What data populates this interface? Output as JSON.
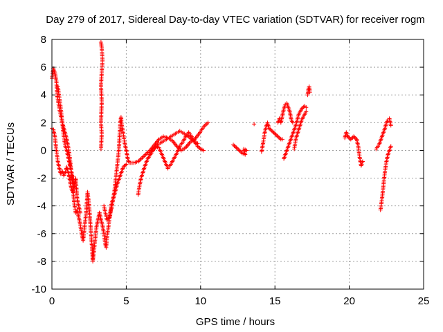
{
  "chart_data": {
    "type": "scatter",
    "title": "Day 279 of 2017, Sidereal Day-to-day VTEC variation (SDTVAR) for receiver rogm",
    "xlabel": "GPS time / hours",
    "ylabel": "SDTVAR / TECUs",
    "xlim": [
      0,
      25
    ],
    "ylim": [
      -10,
      8
    ],
    "x_ticks": [
      0,
      5,
      10,
      15,
      20,
      25
    ],
    "y_ticks": [
      -10,
      -8,
      -6,
      -4,
      -2,
      0,
      2,
      4,
      6,
      8
    ],
    "x_tick_labels": [
      "0",
      "5",
      "10",
      "15",
      "20",
      "25"
    ],
    "y_tick_labels": [
      "-10",
      "-8",
      "-6",
      "-4",
      "-2",
      "0",
      "2",
      "4",
      "6",
      "8"
    ],
    "grid": true,
    "legend": "none",
    "marker": "+",
    "color": "#ff0000",
    "series": [
      {
        "segments": [
          [
            [
              0.0,
              5.2
            ],
            [
              0.1,
              5.9
            ],
            [
              0.2,
              5.6
            ],
            [
              0.3,
              5.0
            ],
            [
              0.35,
              4.0
            ],
            [
              0.5,
              3.0
            ],
            [
              0.7,
              2.0
            ],
            [
              0.9,
              1.2
            ],
            [
              1.0,
              0.8
            ],
            [
              1.1,
              0.2
            ],
            [
              1.2,
              -0.5
            ],
            [
              1.3,
              -1.5
            ],
            [
              1.4,
              -2.5
            ],
            [
              1.5,
              -3.8
            ],
            [
              1.6,
              -4.5
            ],
            [
              1.7,
              -4.3
            ],
            [
              1.8,
              -4.8
            ],
            [
              1.9,
              -5.3
            ],
            [
              2.0,
              -6.0
            ],
            [
              2.1,
              -6.5
            ],
            [
              2.2,
              -5.5
            ],
            [
              2.3,
              -4.5
            ],
            [
              2.4,
              -3.0
            ],
            [
              2.5,
              -4.0
            ],
            [
              2.6,
              -5.5
            ],
            [
              2.7,
              -7.0
            ],
            [
              2.75,
              -8.0
            ],
            [
              2.8,
              -7.5
            ],
            [
              2.9,
              -6.5
            ],
            [
              3.0,
              -5.5
            ],
            [
              3.1,
              -5.0
            ],
            [
              3.2,
              -4.5
            ]
          ],
          [
            [
              0.0,
              1.6
            ],
            [
              0.1,
              1.5
            ],
            [
              0.2,
              1.0
            ],
            [
              0.3,
              0.0
            ],
            [
              0.4,
              -0.8
            ],
            [
              0.5,
              -1.3
            ],
            [
              0.6,
              -1.7
            ],
            [
              0.7,
              -1.5
            ],
            [
              0.8,
              -1.8
            ],
            [
              0.9,
              -1.6
            ],
            [
              1.0,
              -1.2
            ],
            [
              1.1,
              -1.6
            ],
            [
              1.2,
              -2.1
            ],
            [
              1.3,
              -2.7
            ],
            [
              1.4,
              -3.0
            ],
            [
              1.5,
              -2.5
            ],
            [
              1.6,
              -2.0
            ],
            [
              1.7,
              -3.5
            ],
            [
              1.8,
              -4.0
            ],
            [
              1.9,
              -4.5
            ]
          ],
          [
            [
              0.4,
              4.6
            ],
            [
              0.5,
              3.8
            ],
            [
              0.6,
              3.0
            ],
            [
              0.7,
              2.0
            ],
            [
              0.8,
              1.0
            ],
            [
              0.9,
              0.3
            ],
            [
              1.0,
              0.0
            ],
            [
              1.1,
              -0.5
            ],
            [
              1.2,
              -1.0
            ],
            [
              1.3,
              -1.5
            ],
            [
              1.4,
              -2.0
            ],
            [
              1.5,
              -2.6
            ]
          ],
          [
            [
              3.3,
              7.8
            ],
            [
              3.35,
              7.4
            ],
            [
              3.4,
              6.5
            ],
            [
              3.3,
              4.7
            ],
            [
              3.35,
              3.5
            ],
            [
              3.3,
              2.0
            ],
            [
              3.35,
              1.2
            ],
            [
              3.3,
              0.1
            ]
          ],
          [
            [
              3.2,
              -4.5
            ],
            [
              3.3,
              -5.0
            ],
            [
              3.4,
              -5.4
            ],
            [
              3.5,
              -6.0
            ],
            [
              3.6,
              -6.8
            ],
            [
              3.65,
              -7.0
            ],
            [
              3.7,
              -6.3
            ],
            [
              3.8,
              -5.5
            ],
            [
              3.9,
              -4.6
            ],
            [
              4.0,
              -4.2
            ],
            [
              4.1,
              -3.6
            ],
            [
              4.2,
              -3.0
            ],
            [
              4.3,
              -2.0
            ],
            [
              4.4,
              -1.0
            ],
            [
              4.5,
              0.0
            ],
            [
              4.55,
              1.0
            ],
            [
              4.6,
              2.0
            ],
            [
              4.65,
              2.4
            ],
            [
              4.7,
              1.8
            ],
            [
              4.8,
              1.2
            ],
            [
              4.9,
              0.5
            ],
            [
              5.0,
              0.0
            ],
            [
              5.1,
              -0.6
            ],
            [
              5.2,
              -0.9
            ],
            [
              5.5,
              -0.9
            ],
            [
              5.8,
              -0.8
            ],
            [
              6.0,
              -0.6
            ],
            [
              6.3,
              -0.3
            ],
            [
              6.6,
              0.0
            ],
            [
              6.9,
              0.4
            ],
            [
              7.2,
              0.8
            ],
            [
              7.5,
              1.0
            ],
            [
              7.8,
              0.9
            ],
            [
              8.1,
              0.7
            ],
            [
              8.4,
              0.3
            ],
            [
              8.7,
              0.0
            ],
            [
              9.0,
              0.2
            ],
            [
              9.3,
              0.6
            ],
            [
              9.6,
              0.8
            ],
            [
              9.9,
              1.2
            ],
            [
              10.2,
              1.7
            ],
            [
              10.5,
              2.0
            ]
          ],
          [
            [
              3.5,
              -4.0
            ],
            [
              3.7,
              -5.0
            ],
            [
              3.9,
              -4.8
            ],
            [
              4.0,
              -3.9
            ],
            [
              4.2,
              -3.2
            ],
            [
              4.4,
              -2.4
            ],
            [
              4.6,
              -1.8
            ],
            [
              4.8,
              -1.2
            ],
            [
              5.0,
              -1.0
            ]
          ],
          [
            [
              5.8,
              -3.2
            ],
            [
              5.9,
              -2.5
            ],
            [
              6.0,
              -2.0
            ],
            [
              6.2,
              -1.3
            ],
            [
              6.4,
              -0.7
            ],
            [
              6.6,
              -0.3
            ],
            [
              6.8,
              0.1
            ],
            [
              7.0,
              0.3
            ],
            [
              7.2,
              0.2
            ],
            [
              7.4,
              -0.3
            ],
            [
              7.6,
              -0.8
            ],
            [
              7.8,
              -1.3
            ],
            [
              8.0,
              -1.0
            ],
            [
              8.2,
              -0.6
            ],
            [
              8.4,
              -0.2
            ],
            [
              8.6,
              0.3
            ],
            [
              8.8,
              0.6
            ],
            [
              9.0,
              1.0
            ],
            [
              9.2,
              1.3
            ],
            [
              9.4,
              1.0
            ],
            [
              9.6,
              0.6
            ],
            [
              9.8,
              0.3
            ],
            [
              10.0,
              0.1
            ],
            [
              10.2,
              0.0
            ]
          ],
          [
            [
              6.5,
              -0.5
            ],
            [
              6.8,
              0.0
            ],
            [
              7.1,
              0.4
            ],
            [
              7.4,
              0.6
            ],
            [
              7.7,
              0.8
            ],
            [
              8.0,
              1.0
            ],
            [
              8.3,
              1.2
            ],
            [
              8.6,
              1.4
            ],
            [
              8.9,
              1.2
            ],
            [
              9.2,
              1.0
            ],
            [
              9.5,
              0.7
            ],
            [
              9.8,
              0.5
            ]
          ],
          [
            [
              12.2,
              0.4
            ],
            [
              12.4,
              0.2
            ],
            [
              12.6,
              0.0
            ],
            [
              12.8,
              -0.2
            ],
            [
              13.0,
              -0.3
            ],
            [
              12.9,
              0.1
            ],
            [
              13.1,
              0.0
            ]
          ],
          [
            [
              13.6,
              1.9
            ]
          ],
          [
            [
              14.1,
              -0.1
            ],
            [
              14.2,
              0.5
            ],
            [
              14.3,
              1.2
            ],
            [
              14.4,
              1.7
            ],
            [
              14.5,
              2.0
            ],
            [
              14.6,
              1.6
            ],
            [
              14.8,
              1.4
            ],
            [
              15.0,
              1.2
            ],
            [
              15.2,
              1.0
            ],
            [
              15.4,
              0.8
            ],
            [
              15.5,
              0.8
            ]
          ],
          [
            [
              15.2,
              2.0
            ],
            [
              15.3,
              2.3
            ],
            [
              15.4,
              2.0
            ],
            [
              15.5,
              2.5
            ],
            [
              15.6,
              3.0
            ],
            [
              15.7,
              3.3
            ],
            [
              15.8,
              3.4
            ],
            [
              15.9,
              3.1
            ],
            [
              16.0,
              2.8
            ],
            [
              16.1,
              2.2
            ],
            [
              16.2,
              2.0
            ]
          ],
          [
            [
              15.6,
              -0.6
            ],
            [
              15.8,
              0.0
            ],
            [
              16.0,
              0.6
            ],
            [
              16.2,
              1.2
            ],
            [
              16.4,
              1.8
            ],
            [
              16.5,
              2.2
            ],
            [
              16.6,
              2.6
            ],
            [
              16.8,
              3.0
            ],
            [
              17.0,
              3.2
            ],
            [
              17.1,
              3.1
            ]
          ],
          [
            [
              16.3,
              0.1
            ],
            [
              16.4,
              0.8
            ],
            [
              16.6,
              1.5
            ],
            [
              16.8,
              2.2
            ],
            [
              17.0,
              2.6
            ],
            [
              17.1,
              2.8
            ]
          ],
          [
            [
              17.2,
              4.0
            ],
            [
              17.25,
              4.4
            ],
            [
              17.3,
              4.6
            ],
            [
              17.35,
              4.2
            ]
          ],
          [
            [
              19.7,
              0.9
            ],
            [
              19.8,
              1.3
            ],
            [
              19.9,
              1.0
            ],
            [
              20.1,
              0.8
            ],
            [
              20.3,
              1.0
            ],
            [
              20.5,
              0.8
            ],
            [
              20.6,
              0.3
            ],
            [
              20.7,
              -0.5
            ],
            [
              20.8,
              -1.1
            ],
            [
              20.9,
              -0.8
            ]
          ],
          [
            [
              21.8,
              0.1
            ],
            [
              22.0,
              0.4
            ],
            [
              22.2,
              1.0
            ],
            [
              22.4,
              1.6
            ],
            [
              22.5,
              2.0
            ],
            [
              22.6,
              2.2
            ],
            [
              22.7,
              2.3
            ],
            [
              22.8,
              1.8
            ]
          ],
          [
            [
              22.1,
              -4.3
            ],
            [
              22.2,
              -3.5
            ],
            [
              22.3,
              -2.5
            ],
            [
              22.4,
              -1.5
            ],
            [
              22.5,
              -0.8
            ],
            [
              22.6,
              -0.3
            ],
            [
              22.7,
              0.0
            ],
            [
              22.8,
              0.3
            ]
          ]
        ]
      }
    ]
  }
}
